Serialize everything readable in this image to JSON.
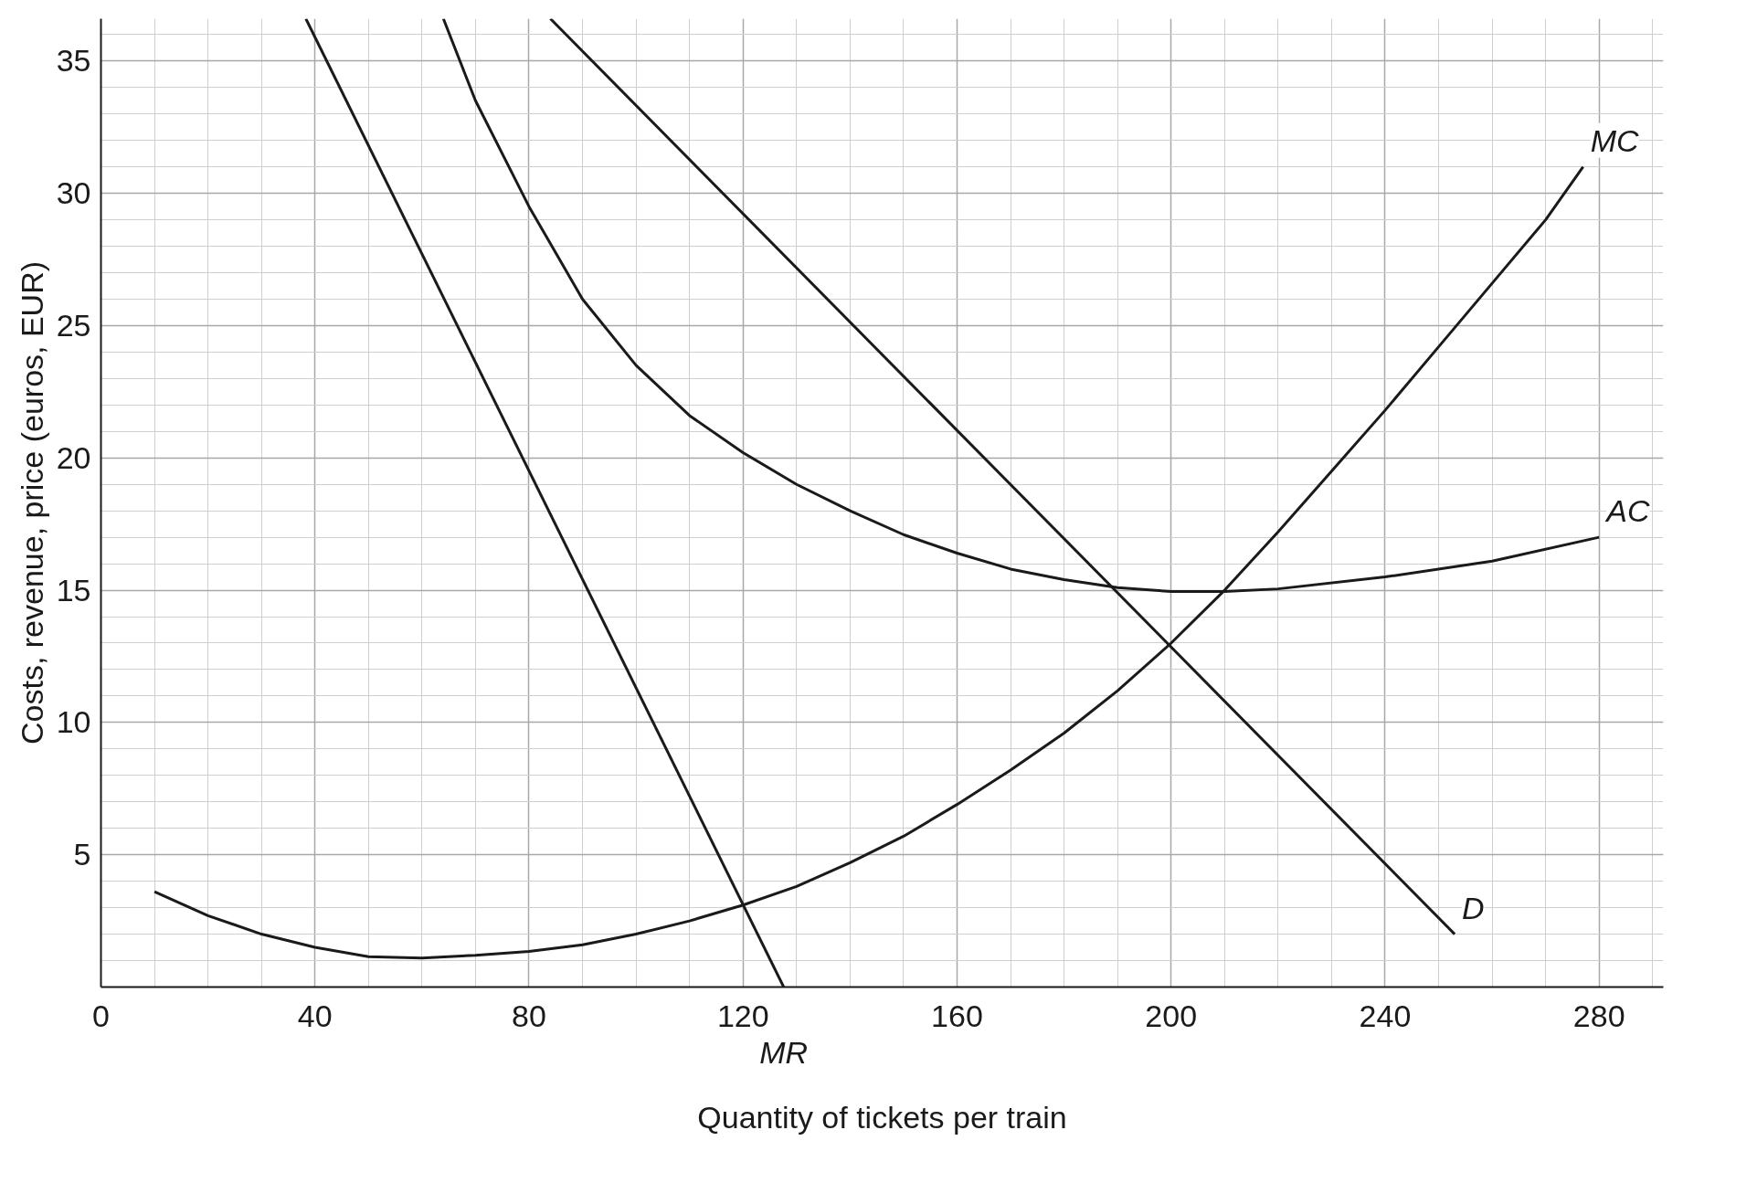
{
  "chart_data": {
    "type": "line",
    "xlabel": "Quantity of tickets per train",
    "ylabel": "Costs, revenue, price (euros, EUR)",
    "xlim": [
      0,
      292
    ],
    "ylim": [
      0,
      36.6
    ],
    "xticks": [
      0,
      40,
      80,
      120,
      160,
      200,
      240,
      280
    ],
    "yticks": [
      5,
      10,
      15,
      20,
      25,
      30,
      35
    ],
    "grid": true,
    "marker": "none",
    "line_style": "solid",
    "series": [
      {
        "name": "MC",
        "color": "#1a1a1a",
        "x": [
          10,
          20,
          30,
          40,
          50,
          60,
          70,
          80,
          90,
          100,
          110,
          120,
          130,
          140,
          150,
          160,
          170,
          180,
          190,
          200,
          210,
          220,
          230,
          240,
          250,
          260,
          270,
          277
        ],
        "values": [
          3.6,
          2.7,
          2.0,
          1.5,
          1.15,
          1.1,
          1.2,
          1.35,
          1.6,
          2.0,
          2.5,
          3.1,
          3.8,
          4.7,
          5.7,
          6.9,
          8.2,
          9.6,
          11.2,
          13.0,
          15.0,
          17.2,
          19.5,
          21.8,
          24.2,
          26.6,
          29.0,
          31.0
        ]
      },
      {
        "name": "AC",
        "color": "#1a1a1a",
        "x": [
          64,
          70,
          80,
          90,
          100,
          110,
          120,
          130,
          140,
          150,
          160,
          170,
          180,
          190,
          200,
          210,
          220,
          240,
          260,
          280
        ],
        "values": [
          36.6,
          33.5,
          29.5,
          26.0,
          23.5,
          21.6,
          20.2,
          19.0,
          18.0,
          17.1,
          16.4,
          15.8,
          15.4,
          15.1,
          14.95,
          14.95,
          15.05,
          15.5,
          16.1,
          17.0
        ]
      },
      {
        "name": "D",
        "color": "#1a1a1a",
        "x": [
          84,
          253
        ],
        "values": [
          36.6,
          2.0
        ]
      },
      {
        "name": "MR",
        "color": "#1a1a1a",
        "x": [
          38.3,
          127.6
        ],
        "values": [
          36.6,
          0
        ]
      }
    ]
  }
}
